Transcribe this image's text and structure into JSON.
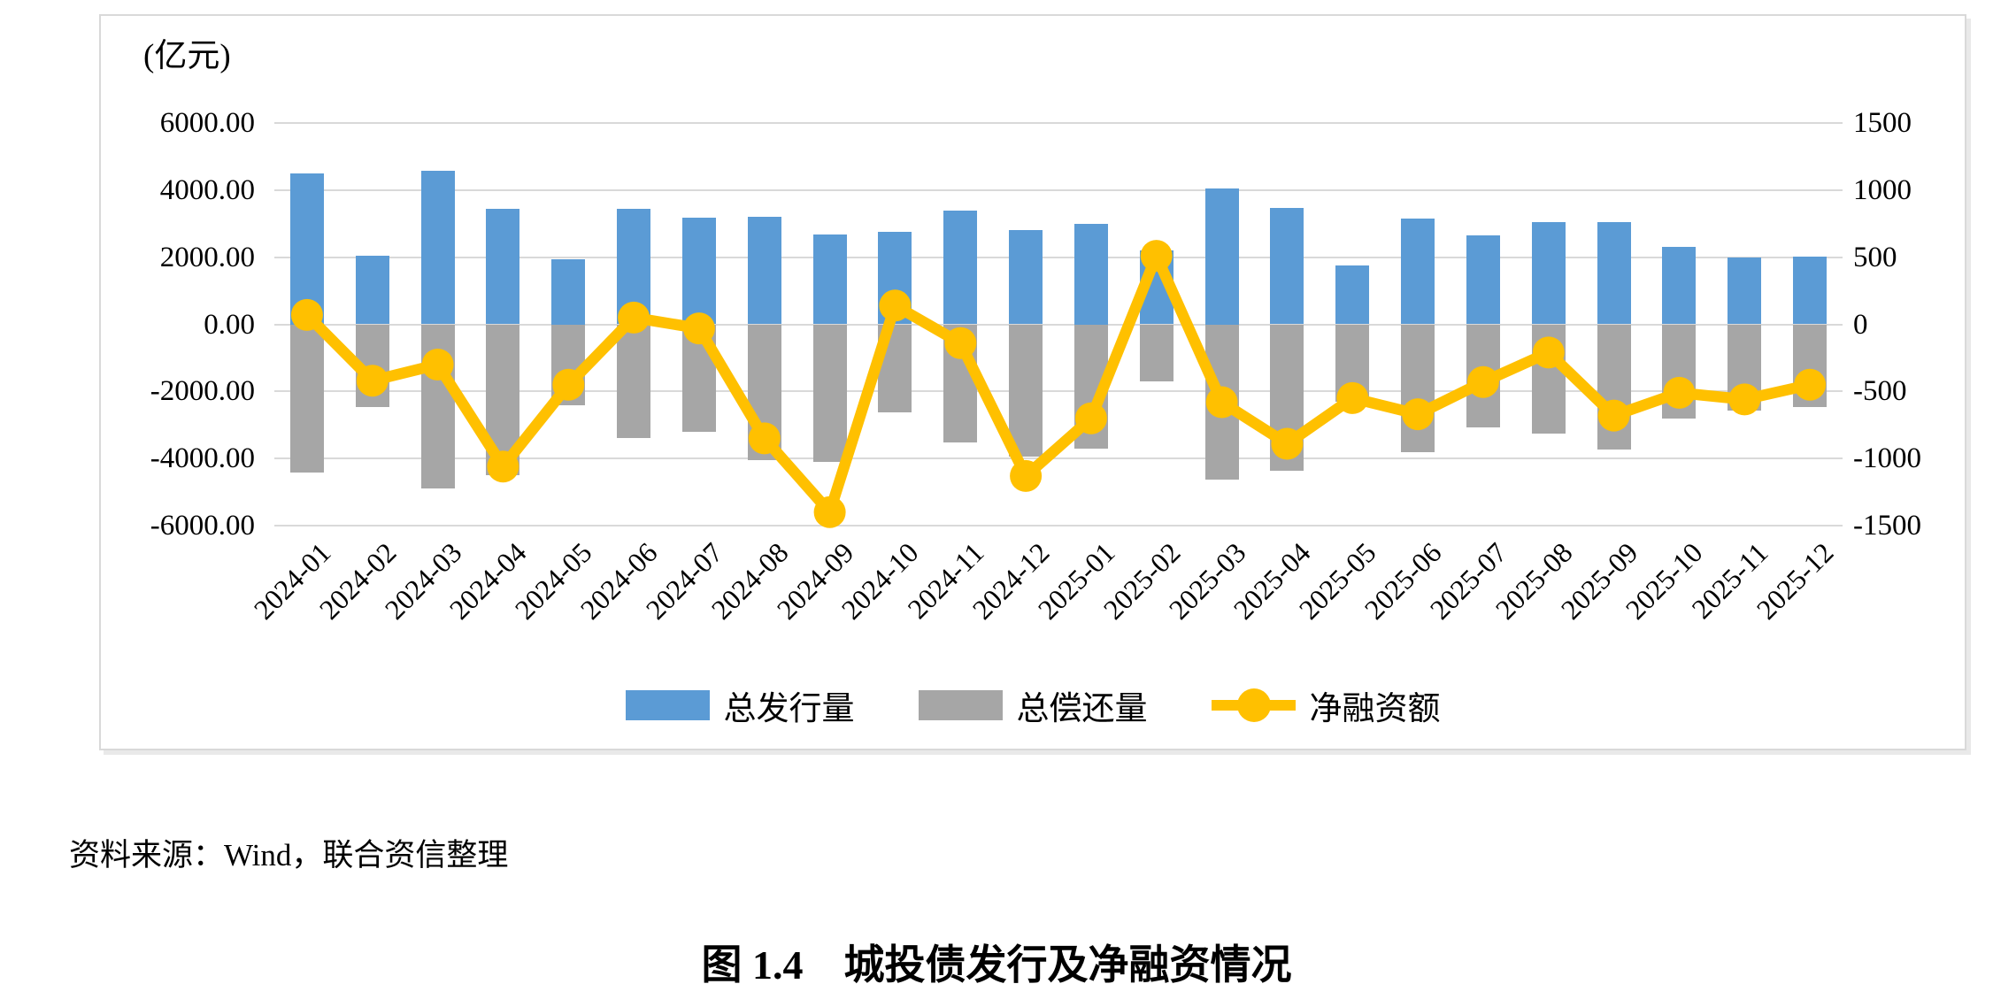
{
  "chart_data": {
    "type": "bar+line combo",
    "unit_label": "(亿元)",
    "categories": [
      "2024-01",
      "2024-02",
      "2024-03",
      "2024-04",
      "2024-05",
      "2024-06",
      "2024-07",
      "2024-08",
      "2024-09",
      "2024-10",
      "2024-11",
      "2024-12",
      "2025-01",
      "2025-02",
      "2025-03",
      "2025-04",
      "2025-05",
      "2025-06",
      "2025-07",
      "2025-08",
      "2025-09",
      "2025-10",
      "2025-11",
      "2025-12"
    ],
    "series": [
      {
        "name": "总发行量",
        "type": "bar",
        "axis": "left",
        "color": "#5b9bd5",
        "values": [
          4500,
          2050,
          4580,
          3430,
          1950,
          3440,
          3170,
          3210,
          2690,
          2760,
          3380,
          2820,
          3000,
          2210,
          4050,
          3480,
          1750,
          3140,
          2640,
          3050,
          3040,
          2300,
          2000,
          2010
        ]
      },
      {
        "name": "总偿还量",
        "type": "bar",
        "axis": "left",
        "color": "#a6a6a6",
        "values": [
          -4430,
          -2470,
          -4880,
          -4490,
          -2400,
          -3390,
          -3200,
          -4060,
          -4090,
          -2620,
          -3520,
          -3950,
          -3700,
          -1700,
          -4630,
          -4370,
          -2300,
          -3810,
          -3070,
          -3260,
          -3720,
          -2810,
          -2560,
          -2460
        ]
      },
      {
        "name": "净融资额",
        "type": "line",
        "axis": "right",
        "color": "#ffc000",
        "values": [
          70,
          -420,
          -300,
          -1060,
          -450,
          50,
          -30,
          -850,
          -1400,
          140,
          -140,
          -1130,
          -700,
          510,
          -580,
          -890,
          -550,
          -670,
          -430,
          -210,
          -680,
          -510,
          -560,
          -450
        ]
      }
    ],
    "left_axis": {
      "min": -6000,
      "max": 6000,
      "tick_labels": [
        "6000.00",
        "4000.00",
        "2000.00",
        "0.00",
        "-2000.00",
        "-4000.00",
        "-6000.00"
      ]
    },
    "right_axis": {
      "min": -1500,
      "max": 1500,
      "tick_labels": [
        "1500",
        "1000",
        "500",
        "0",
        "-500",
        "-1000",
        "-1500"
      ]
    },
    "grid": true,
    "gridline_color": "#d9d9d9",
    "legend_position": "bottom"
  },
  "footer": {
    "source_text": "资料来源：Wind，联合资信整理"
  },
  "caption": {
    "text": "图 1.4　城投债发行及净融资情况"
  }
}
